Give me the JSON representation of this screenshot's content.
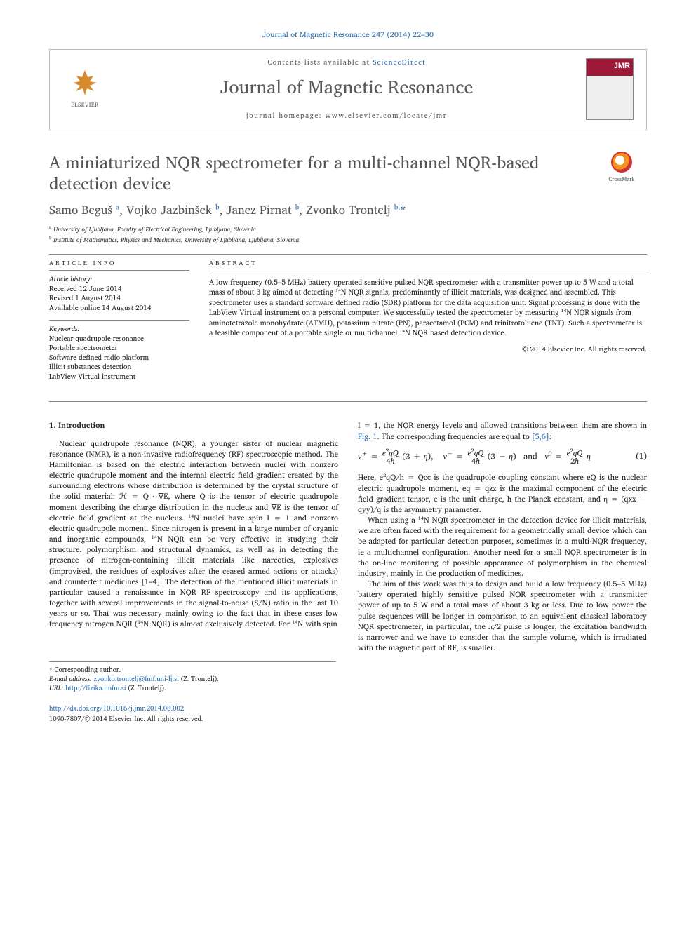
{
  "page": {
    "citation": "Journal of Magnetic Resonance 247 (2014) 22–30",
    "contents_prefix": "Contents lists available at ",
    "contents_link": "ScienceDirect",
    "journal_title": "Journal of Magnetic Resonance",
    "homepage": "journal homepage: www.elsevier.com/locate/jmr",
    "elsevier": "ELSEVIER",
    "cover_label": "JMR",
    "crossmark": "CrossMark"
  },
  "article": {
    "title": "A miniaturized NQR spectrometer for a multi-channel NQR-based detection device",
    "authors_html": "Samo Beguš <sup>a</sup>, Vojko Jazbinšek <sup>b</sup>, Janez Pirnat <sup>b</sup>, Zvonko Trontelj <sup>b,</sup><span class='star'>*</span>",
    "affiliations": {
      "a": "University of Ljubljana, Faculty of Electrical Engineering, Ljubljana, Slovenia",
      "b": "Institute of Mathematics, Physics and Mechanics, University of Ljubljana, Ljubljana, Slovenia"
    }
  },
  "info": {
    "heading": "ARTICLE INFO",
    "history_label": "Article history:",
    "received": "Received 12 June 2014",
    "revised": "Revised 1 August 2014",
    "online": "Available online 14 August 2014",
    "keywords_label": "Keywords:",
    "keywords": [
      "Nuclear quadrupole resonance",
      "Portable spectrometer",
      "Software defined radio platform",
      "Illicit substances detection",
      "LabView Virtual instrument"
    ]
  },
  "abstract": {
    "heading": "ABSTRACT",
    "text": "A low frequency (0.5–5 MHz) battery operated sensitive pulsed NQR spectrometer with a transmitter power up to 5 W and a total mass of about 3 kg aimed at detecting ¹⁴N NQR signals, predominantly of illicit materials, was designed and assembled. This spectrometer uses a standard software defined radio (SDR) platform for the data acquisition unit. Signal processing is done with the LabView Virtual instrument on a personal computer. We successfully tested the spectrometer by measuring ¹⁴N NQR signals from aminotetrazole monohydrate (ATMH), potassium nitrate (PN), paracetamol (PCM) and trinitrotoluene (TNT). Such a spectrometer is a feasible component of a portable single or multichannel ¹⁴N NQR based detection device.",
    "copyright": "© 2014 Elsevier Inc. All rights reserved."
  },
  "body": {
    "section1_heading": "1. Introduction",
    "p1": "Nuclear quadrupole resonance (NQR), a younger sister of nuclear magnetic resonance (NMR), is a non-invasive radiofrequency (RF) spectroscopic method. The Hamiltonian is based on the electric interaction between nuclei with nonzero electric quadrupole moment and the internal electric field gradient created by the surrounding electrons whose distribution is determined by the crystal structure of the solid material: ℋ = Q · ∇E, where Q is the tensor of electric quadrupole moment describing the charge distribution in the nucleus and ∇E is the tensor of electric field gradient at the nucleus. ¹⁴N nuclei have spin I = 1 and nonzero electric quadrupole moment. Since nitrogen is present in a large number of organic and inorganic compounds, ¹⁴N NQR can be very effective in studying their structure, polymorphism and structural dynamics, as well as in detecting the presence of nitrogen-containing illicit materials like narcotics, explosives (improvised, the residues of explosives after the ceased armed actions or attacks) and counterfeit medicines [1–4]. The detection of the mentioned illicit materials in particular caused a renaissance in NQR RF spectroscopy and its applications, together with several improvements in the signal-to-noise (S/N) ratio in the last 10 years or so. That was necessary mainly owing to the fact that in these cases low frequency nitrogen NQR (¹⁴N NQR) is almost exclusively detected. For ¹⁴N with spin",
    "p2a": "I = 1, the NQR energy levels and allowed transitions between them are shown in ",
    "p2_figref": "Fig. 1",
    "p2b": ". The corresponding frequencies are equal to ",
    "p2_ref": "[5,6]",
    "p2c": ":",
    "eq1_num": "(1)",
    "p3": "Here, e²qQ/h = Qcc is the quadrupole coupling constant where eQ is the nuclear electric quadrupole moment, eq = qzz is the maximal component of the electric field gradient tensor, e is the unit charge, h the Planck constant, and η = (qxx − qyy)/q is the asymmetry parameter.",
    "p4": "When using a ¹⁴N NQR spectrometer in the detection device for illicit materials, we are often faced with the requirement for a geometrically small device which can be adapted for particular detection purposes, sometimes in a multi-NQR frequency, ie a multichannel configuration. Another need for a small NQR spectrometer is in the on-line monitoring of possible appearance of polymorphism in the chemical industry, mainly in the production of medicines.",
    "p5": "The aim of this work was thus to design and build a low frequency (0.5–5 MHz) battery operated highly sensitive pulsed NQR spectrometer with a transmitter power of up to 5 W and a total mass of about 3 kg or less. Due to low power the pulse sequences will be longer in comparison to an equivalent classical laboratory NQR spectrometer, in particular, the π/2 pulse is longer, the excitation bandwidth is narrower and we have to consider that the sample volume, which is irradiated with the magnetic part of RF, is smaller."
  },
  "footnotes": {
    "corresponding": "* Corresponding author.",
    "email_label": "E-mail address:",
    "email": "zvonko.trontelj@fmf.uni-lj.si",
    "email_who": "(Z. Trontelj).",
    "url_label": "URL:",
    "url": "http://fizika.imfm.si",
    "url_who": "(Z. Trontelj)."
  },
  "footer": {
    "doi": "http://dx.doi.org/10.1016/j.jmr.2014.08.002",
    "issn": "1090-7807/© 2014 Elsevier Inc. All rights reserved."
  },
  "colors": {
    "link": "#2a6bb0",
    "title_gray": "#555555",
    "rule": "#888888",
    "elsevier_orange": "#d58b2c",
    "jmr_red": "#9b1a37"
  }
}
